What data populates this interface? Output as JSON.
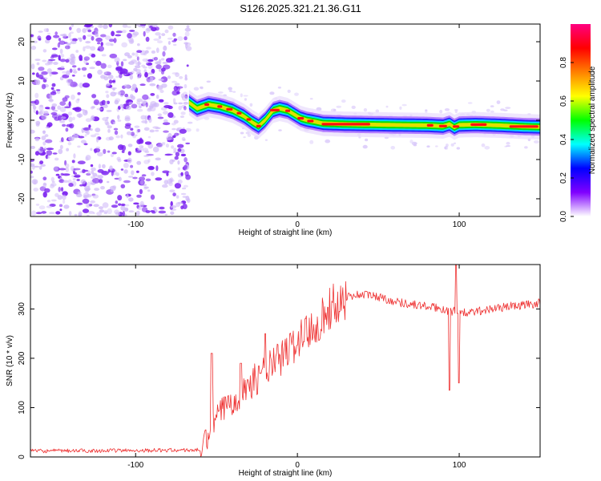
{
  "title": "S126.2025.321.21.36.G11",
  "chart_data": [
    {
      "type": "heatmap",
      "xlabel": "Height of straight line (km)",
      "ylabel": "Frequency (Hz)",
      "xlim": [
        -165,
        150
      ],
      "ylim": [
        -24.5,
        24.5
      ],
      "xticks": [
        -100,
        0,
        100
      ],
      "yticks": [
        -20,
        -10,
        0,
        10,
        20
      ],
      "noise_region_x": [
        -165,
        -67
      ],
      "ridge": {
        "x": [
          -67,
          -62,
          -55,
          -48,
          -40,
          -33,
          -28,
          -24,
          -20,
          -15,
          -11,
          -6,
          -2,
          2,
          6,
          10,
          16,
          30,
          60,
          80,
          90,
          94,
          97,
          100,
          110,
          125,
          140,
          150
        ],
        "y": [
          4.5,
          3.0,
          4.0,
          3.5,
          2.5,
          1.0,
          -0.5,
          -1.5,
          0.0,
          2.5,
          3.0,
          2.5,
          1.5,
          0.5,
          0.0,
          -0.3,
          -0.8,
          -1.0,
          -1.2,
          -1.3,
          -1.5,
          -1.0,
          -1.8,
          -1.2,
          -1.1,
          -1.3,
          -1.6,
          -1.7
        ]
      },
      "colorbar": {
        "label": "Normalized spectral amplitude",
        "range": [
          0,
          1
        ],
        "ticks": [
          "0.0",
          "0.2",
          "0.4",
          "0.6",
          "0.8"
        ],
        "tick_values": [
          0,
          0.2,
          0.4,
          0.6,
          0.8
        ],
        "colors": [
          "#ffffff",
          "#8000ff",
          "#0000ff",
          "#00ffff",
          "#00ff00",
          "#ffff00",
          "#ff8000",
          "#ff0000",
          "#ff0080"
        ]
      }
    },
    {
      "type": "line",
      "xlabel": "Height of straight line (km)",
      "ylabel": "SNR (10 * v/v)",
      "xlim": [
        -165,
        150
      ],
      "ylim": [
        0,
        390
      ],
      "xticks": [
        -100,
        0,
        100
      ],
      "yticks": [
        0,
        100,
        200,
        300
      ],
      "color": "#ee3030",
      "trend": {
        "x": [
          -165,
          -60,
          -55,
          -50,
          -45,
          -40,
          -30,
          -20,
          -10,
          0,
          10,
          20,
          30,
          40,
          50,
          60,
          70,
          80,
          90,
          95,
          100,
          105,
          110,
          120,
          130,
          140,
          150
        ],
        "y": [
          12,
          14,
          40,
          80,
          100,
          115,
          145,
          175,
          200,
          235,
          265,
          300,
          325,
          330,
          325,
          315,
          310,
          305,
          300,
          295,
          295,
          290,
          295,
          300,
          305,
          308,
          312
        ]
      },
      "spikes": [
        {
          "x": -53,
          "y": 210
        },
        {
          "x": -35,
          "y": 190
        },
        {
          "x": -20,
          "y": 250
        },
        {
          "x": 5,
          "y": 280
        },
        {
          "x": 94,
          "y": 135
        },
        {
          "x": 98,
          "y": 390
        },
        {
          "x": 100,
          "y": 150
        }
      ]
    }
  ]
}
